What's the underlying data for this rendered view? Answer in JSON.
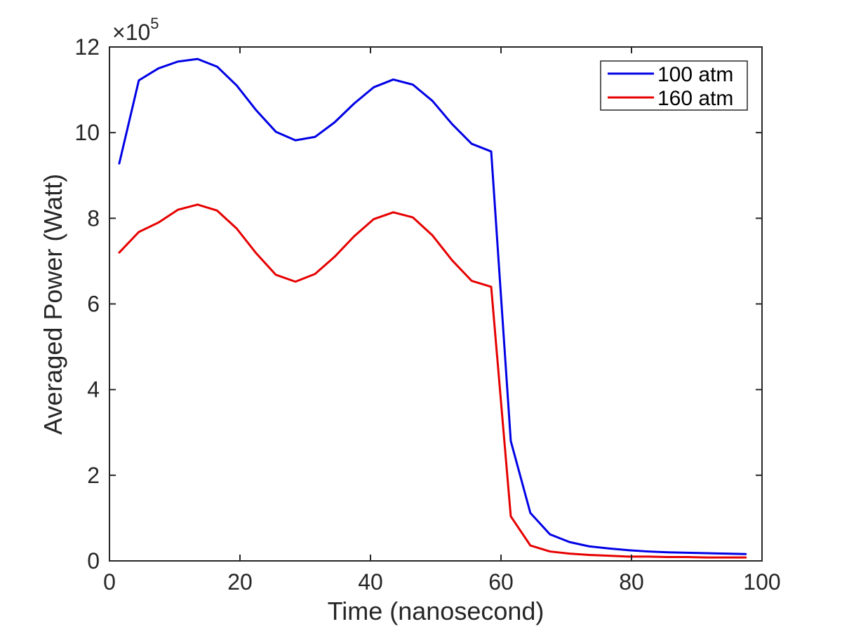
{
  "chart_data": {
    "type": "line",
    "title": "",
    "xlabel": "Time (nanosecond)",
    "ylabel": "Averaged Power (Watt)",
    "xlim": [
      0,
      100
    ],
    "ylim": [
      0,
      12
    ],
    "y_multiplier_base": "×10",
    "y_multiplier_exp": "5",
    "xticks": [
      "0",
      "20",
      "40",
      "60",
      "80",
      "100"
    ],
    "yticks": [
      "0",
      "2",
      "4",
      "6",
      "8",
      "10",
      "12"
    ],
    "grid": false,
    "legend_location": "top-right",
    "x": [
      1.5,
      4.5,
      7.5,
      10.5,
      13.5,
      16.5,
      19.5,
      22.5,
      25.5,
      28.5,
      31.5,
      34.5,
      37.5,
      40.5,
      43.5,
      46.5,
      49.5,
      52.5,
      55.5,
      58.5,
      61.5,
      64.5,
      67.5,
      70.5,
      73.5,
      76.5,
      79.5,
      82.5,
      85.5,
      88.5,
      91.5,
      94.5,
      97.5
    ],
    "series": [
      {
        "name": "100 atm",
        "color": "#0000e6",
        "values": [
          9.28,
          11.22,
          11.5,
          11.66,
          11.72,
          11.54,
          11.1,
          10.52,
          10.02,
          9.82,
          9.9,
          10.24,
          10.68,
          11.06,
          11.24,
          11.12,
          10.74,
          10.2,
          9.74,
          9.56,
          2.8,
          1.12,
          0.62,
          0.44,
          0.34,
          0.29,
          0.25,
          0.22,
          0.2,
          0.19,
          0.18,
          0.17,
          0.16
        ]
      },
      {
        "name": "160 atm",
        "color": "#e60000",
        "values": [
          7.2,
          7.68,
          7.9,
          8.2,
          8.32,
          8.18,
          7.76,
          7.18,
          6.68,
          6.52,
          6.7,
          7.1,
          7.58,
          7.98,
          8.14,
          8.02,
          7.6,
          7.02,
          6.54,
          6.4,
          1.04,
          0.36,
          0.22,
          0.17,
          0.14,
          0.12,
          0.1,
          0.1,
          0.09,
          0.09,
          0.08,
          0.08,
          0.08
        ]
      }
    ]
  }
}
